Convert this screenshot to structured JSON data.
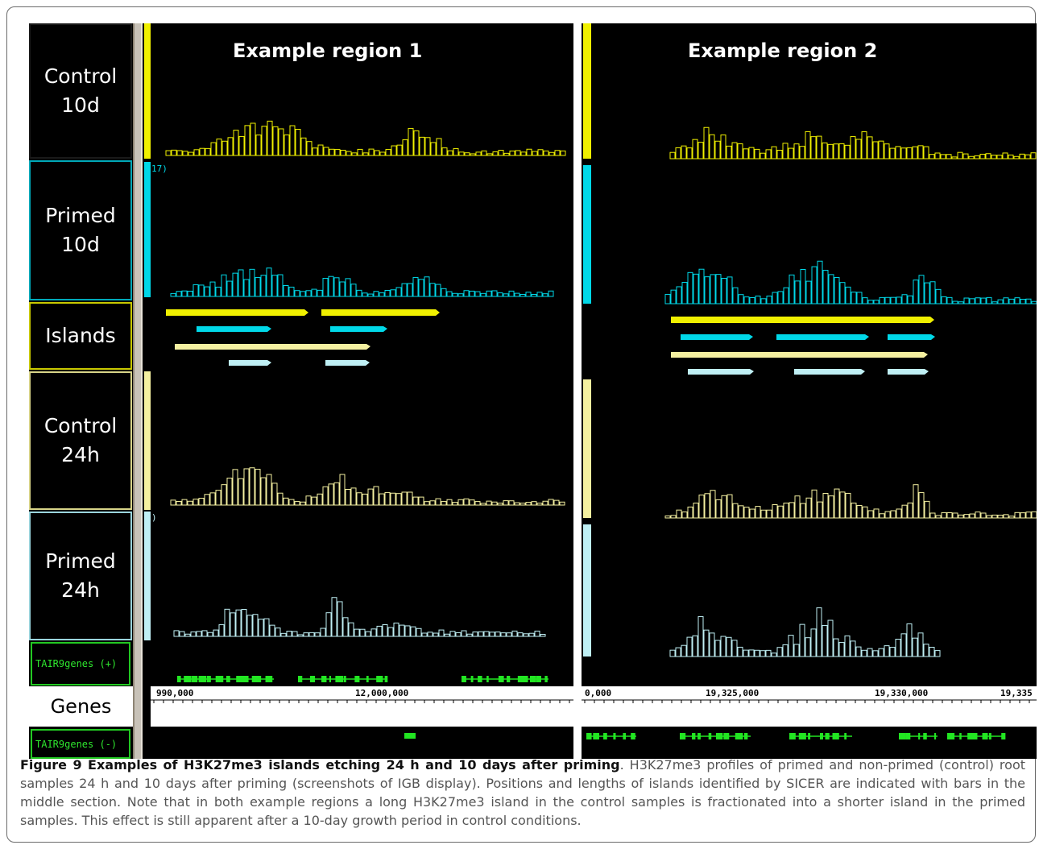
{
  "figure": {
    "region_titles": [
      "Example region 1",
      "Example region 2"
    ],
    "track_labels": {
      "control_10d": [
        "Control",
        "10d"
      ],
      "primed_10d": [
        "Primed",
        "10d"
      ],
      "islands": "Islands",
      "control_24h": [
        "Control",
        "24h"
      ],
      "primed_24h": [
        "Primed",
        "24h"
      ],
      "genes": "Genes",
      "tair_plus": "TAIR9genes (+)",
      "tair_minus": "TAIR9genes (-)"
    },
    "stray_text": {
      "primed10d_scale": "17)",
      "primed24h_scale": ")"
    },
    "ruler": {
      "region1_ticks": [
        "990,000",
        "12,000,000"
      ],
      "region2_ticks": [
        "0,000",
        "19,325,000",
        "19,330,000",
        "19,335"
      ]
    },
    "colors": {
      "control_10d": "#f0f000",
      "primed_10d": "#00d8e8",
      "control_24h": "#f4f0a0",
      "primed_24h": "#bfeff4",
      "genes": "#22e622"
    }
  },
  "caption": {
    "label": "Figure 9 Examples of H3K27me3 islands etching 24 h and 10 days after priming",
    "text": ". H3K27me3 profiles of primed and non-primed (control) root samples 24 h and 10 days after priming (screenshots of IGB display). Positions and lengths of islands identified by SICER are indicated with bars in the middle section. Note that in both example regions a long H3K27me3 island in the control samples is fractionated into a shorter island in the primed samples. This effect is still apparent after a 10-day growth period in control conditions."
  }
}
